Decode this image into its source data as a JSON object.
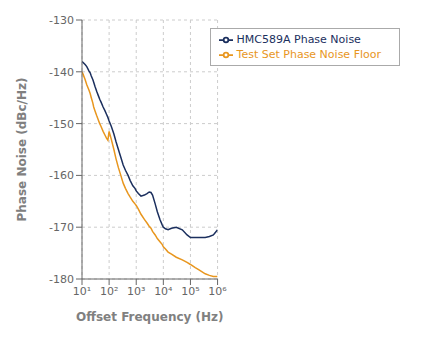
{
  "chart_data": {
    "type": "line",
    "xlabel": "Offset Frequency (Hz)",
    "ylabel": "Phase Noise (dBc/Hz)",
    "log": "x",
    "grid": true,
    "legend": "upper right",
    "xlim": [
      10,
      1000000
    ],
    "ylim": [
      -180,
      -130
    ],
    "xticks": [
      {
        "value": 10,
        "label": "10¹"
      },
      {
        "value": 100,
        "label": "10²"
      },
      {
        "value": 1000,
        "label": "10³"
      },
      {
        "value": 10000,
        "label": "10⁴"
      },
      {
        "value": 100000,
        "label": "10⁵"
      },
      {
        "value": 1000000,
        "label": "10⁶"
      }
    ],
    "yticks": [
      -180,
      -170,
      -160,
      -150,
      -140,
      -130
    ],
    "x": [
      10,
      11,
      13,
      15,
      18,
      20,
      22,
      25,
      27,
      30,
      35,
      40,
      45,
      50,
      60,
      70,
      80,
      90,
      100,
      120,
      150,
      180,
      220,
      270,
      330,
      400,
      500,
      600,
      750,
      900,
      1000,
      1200,
      1500,
      2000,
      2500,
      3000,
      3500,
      4000,
      5000,
      6000,
      7500,
      9000,
      10000,
      12000,
      15000,
      20000,
      30000,
      50000,
      75000,
      100000,
      150000,
      200000,
      350000,
      500000,
      700000,
      1000000
    ],
    "series": [
      {
        "name": "HMC589A Phase Noise",
        "color": "#1b2f5e",
        "values": [
          -138.0,
          -138.2,
          -138.6,
          -139.0,
          -139.8,
          -140.2,
          -140.8,
          -141.5,
          -142.0,
          -142.8,
          -143.8,
          -144.6,
          -145.3,
          -145.8,
          -146.8,
          -147.5,
          -148.2,
          -148.8,
          -149.5,
          -150.5,
          -152.0,
          -153.5,
          -155.0,
          -156.5,
          -158.0,
          -159.0,
          -160.0,
          -161.0,
          -162.0,
          -162.5,
          -163.0,
          -163.5,
          -164.0,
          -163.8,
          -163.5,
          -163.2,
          -163.3,
          -163.8,
          -165.5,
          -167.0,
          -168.5,
          -169.5,
          -170.0,
          -170.3,
          -170.5,
          -170.2,
          -170.0,
          -170.5,
          -171.5,
          -172.0,
          -172.0,
          -172.0,
          -172.0,
          -171.8,
          -171.5,
          -170.5
        ]
      },
      {
        "name": "Test Set Phase Noise Floor",
        "color": "#e8961e",
        "values": [
          -140.0,
          -140.5,
          -141.5,
          -142.5,
          -143.5,
          -144.2,
          -145.0,
          -146.0,
          -146.8,
          -147.5,
          -148.5,
          -149.3,
          -150.0,
          -150.5,
          -151.5,
          -152.2,
          -152.8,
          -153.2,
          -151.5,
          -153.0,
          -155.0,
          -156.8,
          -158.5,
          -160.0,
          -161.5,
          -162.5,
          -163.5,
          -164.2,
          -165.0,
          -165.5,
          -165.8,
          -166.5,
          -167.5,
          -168.5,
          -169.2,
          -169.8,
          -170.2,
          -170.8,
          -171.5,
          -172.2,
          -172.8,
          -173.3,
          -173.8,
          -174.2,
          -174.8,
          -175.2,
          -175.8,
          -176.3,
          -176.8,
          -177.2,
          -177.8,
          -178.2,
          -179.0,
          -179.3,
          -179.5,
          -179.5
        ]
      }
    ]
  }
}
